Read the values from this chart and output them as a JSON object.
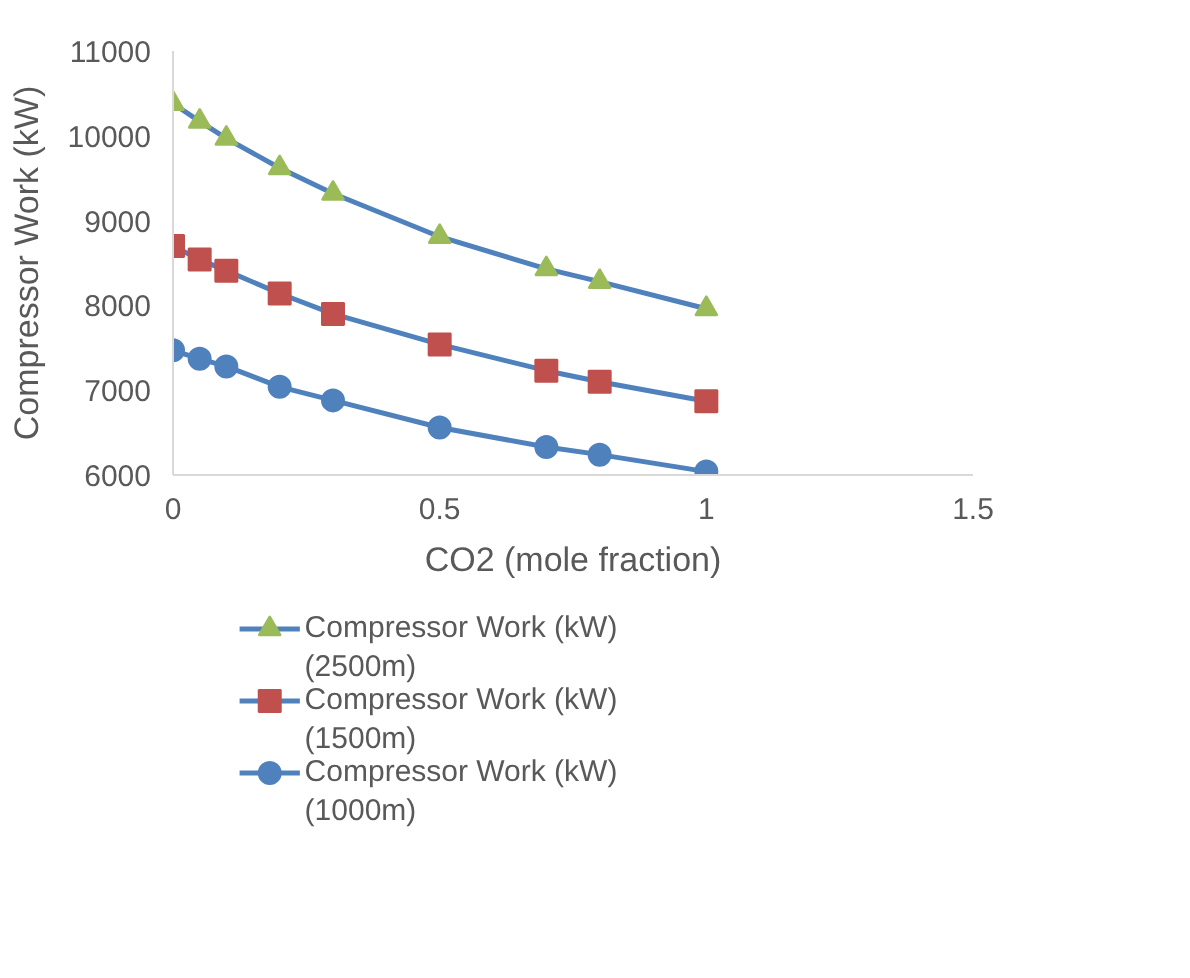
{
  "chart_data": {
    "type": "line",
    "xlabel": "CO2 (mole fraction)",
    "ylabel": "Compressor Work (kW)",
    "x": [
      0,
      0.05,
      0.1,
      0.2,
      0.3,
      0.5,
      0.7,
      0.8,
      1
    ],
    "series": [
      {
        "name": "Compressor Work (kW) (2500m)",
        "color": "#4f81bd",
        "colors": [
          "#9bbb59",
          "#9bbb59",
          "#9bbb59",
          "#9bbb59",
          "#9bbb59",
          "#9bbb59",
          "#9bbb59",
          "#9bbb59",
          "#9bbb59"
        ],
        "marker": "triangle",
        "values": [
          10380,
          10170,
          9970,
          9620,
          9320,
          8810,
          8430,
          8280,
          7960
        ]
      },
      {
        "name": "Compressor Work (kW) (1500m)",
        "color": "#4f81bd",
        "colors": [
          "#c0504d",
          "#c0504d",
          "#c0504d",
          "#c0504d",
          "#c0504d",
          "#c0504d",
          "#c0504d",
          "#c0504d",
          "#c0504d"
        ],
        "marker": "square",
        "values": [
          8700,
          8540,
          8410,
          8140,
          7900,
          7540,
          7230,
          7100,
          6870
        ]
      },
      {
        "name": "Compressor Work (kW) (1000m)",
        "color": "#4f81bd",
        "colors": [
          "#4f81bd",
          "#4f81bd",
          "#4f81bd",
          "#4f81bd",
          "#4f81bd",
          "#4f81bd",
          "#4f81bd",
          "#4f81bd",
          "#4f81bd"
        ],
        "marker": "circle",
        "values": [
          7470,
          7370,
          7280,
          7040,
          6880,
          6560,
          6330,
          6240,
          6040
        ]
      }
    ],
    "xlim": [
      0,
      1.5
    ],
    "xticks": [
      0,
      0.5,
      1,
      1.5
    ],
    "ylim": [
      6000,
      11000
    ],
    "yticks": [
      6000,
      7000,
      8000,
      9000,
      10000,
      11000
    ],
    "grid": false,
    "legend": "bottom",
    "line_style": "solid"
  }
}
